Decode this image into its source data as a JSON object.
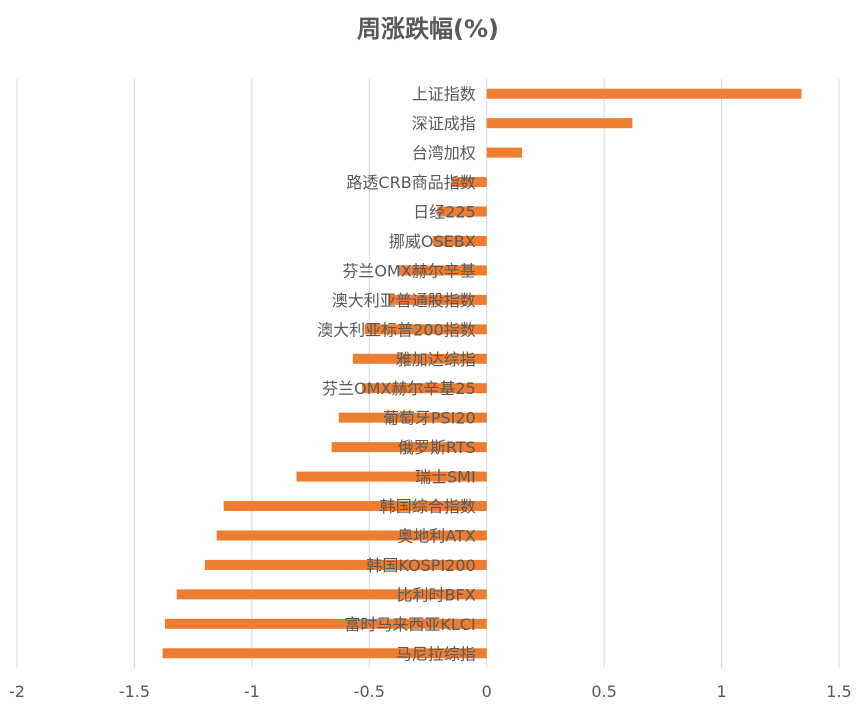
{
  "chart_data": {
    "type": "bar",
    "orientation": "horizontal",
    "title": "周涨跌幅(%)",
    "xlim": [
      -2,
      1.5
    ],
    "xticks": [
      -2,
      -1.5,
      -1,
      -0.5,
      0,
      0.5,
      1,
      1.5
    ],
    "xtick_labels": [
      "-2",
      "-1.5",
      "-1",
      "-0.5",
      "0",
      "0.5",
      "1",
      "1.5"
    ],
    "grid": true,
    "bar_color": "#ED7D31",
    "categories": [
      "上证指数",
      "深证成指",
      "台湾加权",
      "路透CRB商品指数",
      "日经225",
      "挪威OSEBX",
      "芬兰OMX赫尔辛基",
      "澳大利亚普通股指数",
      "澳大利亚标普200指数",
      "雅加达综指",
      "芬兰OMX赫尔辛基25",
      "葡萄牙PSI20",
      "俄罗斯RTS",
      "瑞士SMI",
      "韩国综合指数",
      "奥地利ATX",
      "韩国KOSPI200",
      "比利时BFX",
      "富时马来西亚KLCI",
      "马尼拉综指"
    ],
    "values": [
      1.34,
      0.62,
      0.15,
      -0.15,
      -0.21,
      -0.23,
      -0.38,
      -0.42,
      -0.52,
      -0.57,
      -0.53,
      -0.63,
      -0.66,
      -0.81,
      -1.12,
      -1.15,
      -1.2,
      -1.32,
      -1.37,
      -1.38
    ]
  }
}
